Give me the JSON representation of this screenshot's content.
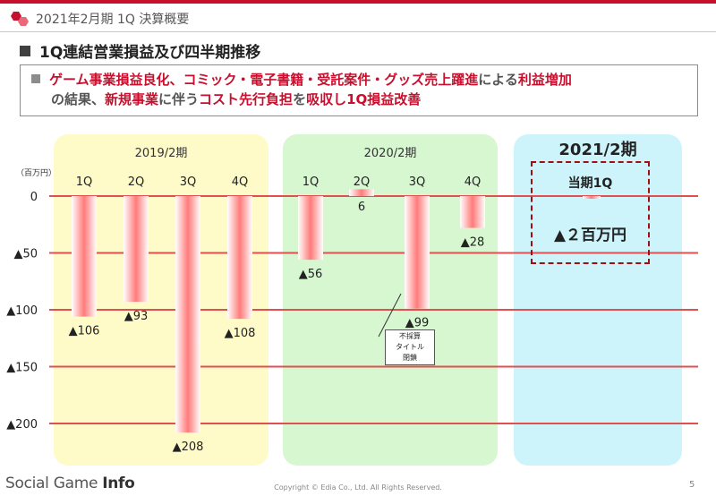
{
  "header": {
    "title": "2021年2月期 1Q 決算概要"
  },
  "section": {
    "title": "1Q連結営業損益及び四半期推移"
  },
  "summary": {
    "p1": "ゲーム事業損益良化、コミック・電子書籍・受託案件・グッズ売上躍進",
    "p2": "による",
    "p3": "利益増加",
    "p4": "の結果、",
    "p5": "新規事業",
    "p6": "に伴う",
    "p7": "コスト先行負担",
    "p8": "を",
    "p9": "吸収し1Q損益改善"
  },
  "panels": {
    "fy2019": {
      "label": "2019/2期",
      "color": "#fffbc8"
    },
    "fy2020": {
      "label": "2020/2期",
      "color": "#d6f7d0"
    },
    "fy2021": {
      "label": "2021/2期",
      "color": "#cdf4fa",
      "box_title": "当期1Q",
      "box_value": "▲２百万円"
    }
  },
  "note": {
    "line1": "不採算",
    "line2": "タイトル",
    "line3": "閉鎖"
  },
  "footer": {
    "brand_light": "Social Game ",
    "brand_bold": "Info",
    "copyright": "Copyright © Edia Co., Ltd. All Rights Reserved.",
    "page": "5"
  },
  "chart_data": {
    "type": "bar",
    "unit_label": "（百万円）",
    "ylim": [
      -200,
      0
    ],
    "y_ticks": [
      {
        "value": 0,
        "label": "0"
      },
      {
        "value": -50,
        "label": "▲50"
      },
      {
        "value": -100,
        "label": "▲100"
      },
      {
        "value": -150,
        "label": "▲150"
      },
      {
        "value": -200,
        "label": "▲200"
      }
    ],
    "grid": true,
    "bar_color": "#ff7a7a",
    "gridline_color": "#e05050",
    "groups": [
      {
        "name": "2019/2期",
        "categories": [
          "1Q",
          "2Q",
          "3Q",
          "4Q"
        ],
        "values": [
          -106,
          -93,
          -208,
          -108
        ],
        "labels": [
          "▲106",
          "▲93",
          "▲208",
          "▲108"
        ]
      },
      {
        "name": "2020/2期",
        "categories": [
          "1Q",
          "2Q",
          "3Q",
          "4Q"
        ],
        "values": [
          -56,
          6,
          -99,
          -28
        ],
        "labels": [
          "▲56",
          "6",
          "▲99",
          "▲28"
        ]
      },
      {
        "name": "2021/2期",
        "categories": [
          "当期1Q"
        ],
        "values": [
          -2
        ],
        "labels": [
          "▲２百万円"
        ]
      }
    ]
  }
}
